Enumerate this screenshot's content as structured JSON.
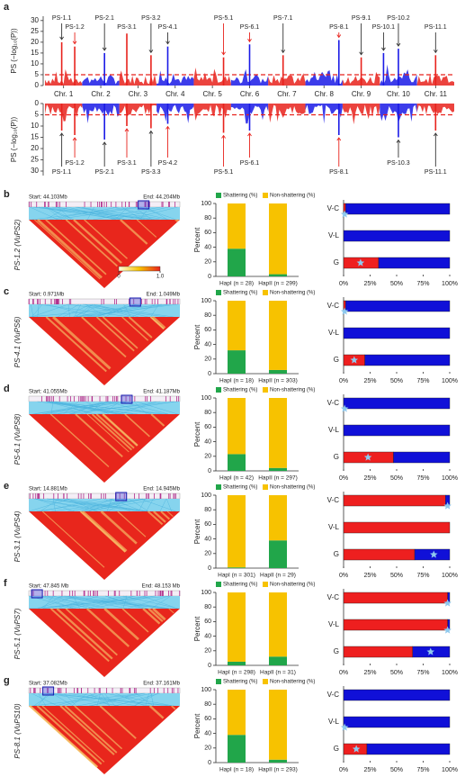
{
  "chart_data": [
    {
      "type": "manhattan",
      "panel": "a",
      "ylabel": "PS (−log₁₀(P))",
      "categories": [
        "Chr. 1",
        "Chr. 2",
        "Chr. 3",
        "Chr. 4",
        "Chr. 5",
        "Chr. 6",
        "Chr. 7",
        "Chr. 8",
        "Chr. 9",
        "Chr. 10",
        "Chr. 11"
      ],
      "colors": [
        "#e8221c",
        "#1a1ae6"
      ],
      "ylim": [
        0,
        32
      ],
      "yticks": [
        0,
        5,
        10,
        15,
        20,
        25,
        30
      ],
      "threshold": 5,
      "threshold_color": "#e8221c",
      "peaks": {
        "labels": [
          "PS-1.1",
          "PS-1.2",
          "PS-2.1",
          "PS-3.1",
          "PS-3.2",
          "PS-4.1",
          "PS-5.1",
          "PS-6.1",
          "PS-7.1",
          "PS-8.1",
          "PS-9.1",
          "PS-10.1",
          "PS-10.2",
          "PS-11.1"
        ],
        "x": [
          1.45,
          1.8,
          2.6,
          3.2,
          3.85,
          4.3,
          5.8,
          6.5,
          7.4,
          8.9,
          9.5,
          10.1,
          10.5,
          11.5
        ],
        "values": [
          20,
          18,
          15,
          24,
          14,
          18,
          13,
          19,
          14,
          21,
          13,
          15,
          17,
          14
        ],
        "colors": [
          "#333333",
          "#e8221c",
          "#333333",
          "#e8221c",
          "#333333",
          "#333333",
          "#e8221c",
          "#e8221c",
          "#333333",
          "#e8221c",
          "#333333",
          "#333333",
          "#333333",
          "#333333"
        ]
      }
    },
    {
      "type": "manhattan",
      "inverted": true,
      "ylabel": "PS (−log₁₀(P))",
      "colors": [
        "#e8221c",
        "#1a1ae6"
      ],
      "ylim": [
        0,
        32
      ],
      "yticks": [
        0,
        5,
        10,
        15,
        20,
        25,
        30
      ],
      "threshold": 5,
      "threshold_color": "#e8221c",
      "peaks": {
        "labels": [
          "PS-1.1",
          "PS-1.2",
          "PS-2.1",
          "PS-3.1",
          "PS-3.3",
          "PS-4.2",
          "PS-5.1",
          "PS-6.1",
          "PS-8.1",
          "PS-10.3",
          "PS-11.1"
        ],
        "x": [
          1.45,
          1.8,
          2.6,
          3.2,
          3.85,
          4.3,
          5.8,
          6.5,
          8.9,
          10.5,
          11.5
        ],
        "values": [
          12,
          14,
          16,
          10,
          11,
          9,
          13,
          12,
          14,
          15,
          12
        ],
        "colors": [
          "#333333",
          "#e8221c",
          "#333333",
          "#e8221c",
          "#333333",
          "#e8221c",
          "#e8221c",
          "#e8221c",
          "#e8221c",
          "#333333",
          "#333333"
        ]
      }
    },
    {
      "type": "ld",
      "panel": "b",
      "ylabel": "PS-1.2 (VuPS2)",
      "start": "Start: 44.103Mb",
      "end": "End: 44.204Mb",
      "colorbar_ticks": [
        0,
        {
          "value": 1,
          "label": "1.0"
        }
      ]
    },
    {
      "type": "stacked_bar",
      "categories": [
        "HapI (n = 28)",
        "HapII (n = 299)"
      ],
      "ylabel": "Percent",
      "ylim": [
        0,
        100
      ],
      "yticks": [
        0,
        20,
        40,
        60,
        80,
        100
      ],
      "series": [
        {
          "name": "Shattering (%)",
          "color": "#21a64a",
          "values": [
            38,
            3
          ]
        },
        {
          "name": "Non-shattering (%)",
          "color": "#f7c200",
          "values": [
            62,
            97
          ]
        }
      ]
    },
    {
      "type": "hbar",
      "categories": [
        "V-C",
        "V-L",
        "G"
      ],
      "xlim": [
        0,
        100
      ],
      "xticks": [
        {
          "value": 0,
          "label": "0%"
        },
        {
          "value": 25,
          "label": "25%"
        },
        {
          "value": 50,
          "label": "50%"
        },
        {
          "value": 75,
          "label": "75%"
        },
        {
          "value": 100,
          "label": "100%"
        }
      ],
      "series": [
        {
          "color": "#ee1f1f",
          "values": [
            2,
            0,
            33
          ]
        },
        {
          "color": "#1010d8",
          "values": [
            98,
            100,
            67
          ]
        }
      ],
      "markers": {
        "color": "#8ec9ee",
        "values": [
          1,
          null,
          16
        ]
      }
    },
    {
      "type": "ld",
      "panel": "c",
      "ylabel": "PS-4.1 (VuPS6)",
      "start": "Start: 0.971Mb",
      "end": "End: 1.049Mb"
    },
    {
      "type": "stacked_bar",
      "categories": [
        "HapI (n = 18)",
        "HapII (n = 303)"
      ],
      "ylabel": "Percent",
      "ylim": [
        0,
        100
      ],
      "yticks": [
        0,
        20,
        40,
        60,
        80,
        100
      ],
      "series": [
        {
          "name": "Shattering (%)",
          "color": "#21a64a",
          "values": [
            32,
            5
          ]
        },
        {
          "name": "Non-shattering (%)",
          "color": "#f7c200",
          "values": [
            68,
            95
          ]
        }
      ]
    },
    {
      "type": "hbar",
      "categories": [
        "V-C",
        "V-L",
        "G"
      ],
      "xlim": [
        0,
        100
      ],
      "xticks": [
        {
          "value": 0,
          "label": "0%"
        },
        {
          "value": 25,
          "label": "25%"
        },
        {
          "value": 50,
          "label": "50%"
        },
        {
          "value": 75,
          "label": "75%"
        },
        {
          "value": 100,
          "label": "100%"
        }
      ],
      "series": [
        {
          "color": "#ee1f1f",
          "values": [
            2,
            0,
            20
          ]
        },
        {
          "color": "#1010d8",
          "values": [
            98,
            100,
            80
          ]
        }
      ],
      "markers": {
        "color": "#8ec9ee",
        "values": [
          1,
          null,
          10
        ]
      }
    },
    {
      "type": "ld",
      "panel": "d",
      "ylabel": "PS-6.1 (VuPS8)",
      "start": "Start: 41.055Mb",
      "end": "End: 41.187Mb"
    },
    {
      "type": "stacked_bar",
      "categories": [
        "HapI (n = 42)",
        "HapII (n = 297)"
      ],
      "ylabel": "Percent",
      "ylim": [
        0,
        100
      ],
      "yticks": [
        0,
        20,
        40,
        60,
        80,
        100
      ],
      "series": [
        {
          "name": "Shattering (%)",
          "color": "#21a64a",
          "values": [
            23,
            4
          ]
        },
        {
          "name": "Non-shattering (%)",
          "color": "#f7c200",
          "values": [
            77,
            96
          ]
        }
      ]
    },
    {
      "type": "hbar",
      "categories": [
        "V-C",
        "V-L",
        "G"
      ],
      "xlim": [
        0,
        100
      ],
      "xticks": [
        {
          "value": 0,
          "label": "0%"
        },
        {
          "value": 25,
          "label": "25%"
        },
        {
          "value": 50,
          "label": "50%"
        },
        {
          "value": 75,
          "label": "75%"
        },
        {
          "value": 100,
          "label": "100%"
        }
      ],
      "series": [
        {
          "color": "#ee1f1f",
          "values": [
            0,
            0,
            47
          ]
        },
        {
          "color": "#1010d8",
          "values": [
            100,
            100,
            53
          ]
        }
      ],
      "markers": {
        "color": "#8ec9ee",
        "values": [
          1,
          null,
          23
        ]
      }
    },
    {
      "type": "ld",
      "panel": "e",
      "ylabel": "PS-3.1 (VuPS4)",
      "start": "Start: 14.881Mb",
      "end": "End: 14.945Mb"
    },
    {
      "type": "stacked_bar",
      "categories": [
        "HapI (n = 301)",
        "HapII (n = 29)"
      ],
      "ylabel": "Percent",
      "ylim": [
        0,
        100
      ],
      "yticks": [
        0,
        20,
        40,
        60,
        80,
        100
      ],
      "series": [
        {
          "name": "Shattering (%)",
          "color": "#21a64a",
          "values": [
            1,
            38
          ]
        },
        {
          "name": "Non-shattering (%)",
          "color": "#f7c200",
          "values": [
            99,
            62
          ]
        }
      ]
    },
    {
      "type": "hbar",
      "categories": [
        "V-C",
        "V-L",
        "G"
      ],
      "xlim": [
        0,
        100
      ],
      "xticks": [
        {
          "value": 0,
          "label": "0%"
        },
        {
          "value": 25,
          "label": "25%"
        },
        {
          "value": 50,
          "label": "50%"
        },
        {
          "value": 75,
          "label": "75%"
        },
        {
          "value": 100,
          "label": "100%"
        }
      ],
      "series": [
        {
          "color": "#ee1f1f",
          "values": [
            96,
            100,
            67
          ]
        },
        {
          "color": "#1010d8",
          "values": [
            4,
            0,
            33
          ]
        }
      ],
      "markers": {
        "color": "#8ec9ee",
        "values": [
          98,
          null,
          85
        ]
      }
    },
    {
      "type": "ld",
      "panel": "f",
      "ylabel": "PS-5.1 (VuPS7)",
      "start": "Start: 47.845 Mb",
      "end": "End: 48.153 Mb"
    },
    {
      "type": "stacked_bar",
      "categories": [
        "HapI (n = 298)",
        "HapII (n = 31)"
      ],
      "ylabel": "Percent",
      "ylim": [
        0,
        100
      ],
      "yticks": [
        0,
        20,
        40,
        60,
        80,
        100
      ],
      "series": [
        {
          "name": "Shattering (%)",
          "color": "#21a64a",
          "values": [
            5,
            12
          ]
        },
        {
          "name": "Non-shattering (%)",
          "color": "#f7c200",
          "values": [
            95,
            88
          ]
        }
      ]
    },
    {
      "type": "hbar",
      "categories": [
        "V-C",
        "V-L",
        "G"
      ],
      "xlim": [
        0,
        100
      ],
      "xticks": [
        {
          "value": 0,
          "label": "0%"
        },
        {
          "value": 25,
          "label": "25%"
        },
        {
          "value": 50,
          "label": "50%"
        },
        {
          "value": 75,
          "label": "75%"
        },
        {
          "value": 100,
          "label": "100%"
        }
      ],
      "series": [
        {
          "color": "#ee1f1f",
          "values": [
            98,
            98,
            65
          ]
        },
        {
          "color": "#1010d8",
          "values": [
            2,
            2,
            35
          ]
        }
      ],
      "markers": {
        "color": "#8ec9ee",
        "values": [
          98,
          98,
          82
        ]
      }
    },
    {
      "type": "ld",
      "panel": "g",
      "ylabel": "PS-8.1 (VuPS10)",
      "start": "Start: 37.082Mb",
      "end": "End: 37.161Mb"
    },
    {
      "type": "stacked_bar",
      "categories": [
        "HapI (n = 18)",
        "HapII (n = 293)"
      ],
      "ylabel": "Percent",
      "ylim": [
        0,
        100
      ],
      "yticks": [
        0,
        20,
        40,
        60,
        80,
        100
      ],
      "series": [
        {
          "name": "Shattering (%)",
          "color": "#21a64a",
          "values": [
            38,
            4
          ]
        },
        {
          "name": "Non-shattering (%)",
          "color": "#f7c200",
          "values": [
            62,
            96
          ]
        }
      ]
    },
    {
      "type": "hbar",
      "categories": [
        "V-C",
        "V-L",
        "G"
      ],
      "xlim": [
        0,
        100
      ],
      "xticks": [
        {
          "value": 0,
          "label": "0%"
        },
        {
          "value": 25,
          "label": "25%"
        },
        {
          "value": 50,
          "label": "50%"
        },
        {
          "value": 75,
          "label": "75%"
        },
        {
          "value": 100,
          "label": "100%"
        }
      ],
      "series": [
        {
          "color": "#ee1f1f",
          "values": [
            0,
            0,
            22
          ]
        },
        {
          "color": "#1010d8",
          "values": [
            100,
            100,
            78
          ]
        }
      ],
      "markers": {
        "color": "#8ec9ee",
        "values": [
          null,
          1,
          12
        ]
      }
    }
  ]
}
